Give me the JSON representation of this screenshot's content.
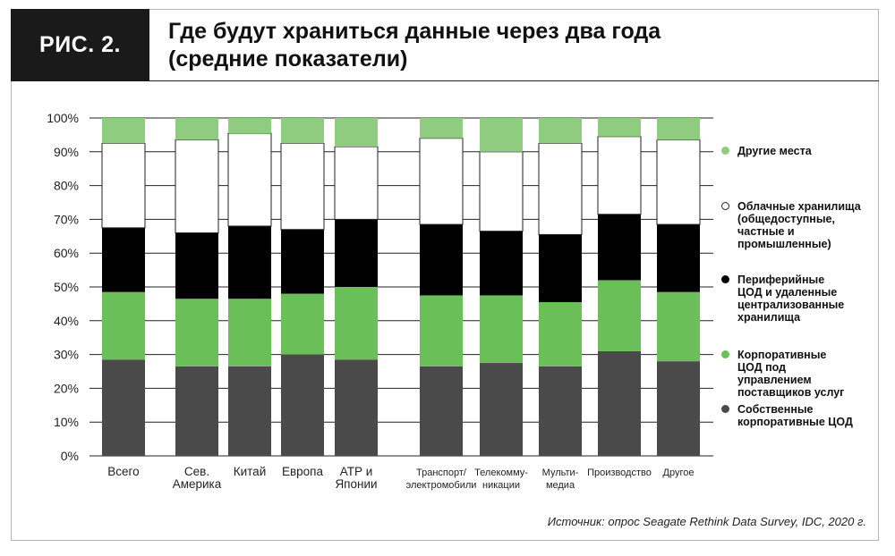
{
  "figure": {
    "label": "РИС. 2.",
    "title_line1": "Где будут храниться данные через два года",
    "title_line2": "(средние показатели)",
    "source": "Источник: опрос Seagate Rethink Data Survey, IDC, 2020 г."
  },
  "colors": {
    "own": "#4a4a4a",
    "provider": "#6bbf59",
    "edge": "#000000",
    "cloud": "#ffffff",
    "other": "#8fcc7f"
  },
  "chart_data": {
    "type": "bar",
    "stacked": true,
    "grid": true,
    "legend_position": "right",
    "ylim": [
      0,
      100
    ],
    "yticks": [
      "0%",
      "10%",
      "20%",
      "30%",
      "40%",
      "50%",
      "60%",
      "70%",
      "80%",
      "90%",
      "100%"
    ],
    "categories": [
      [
        "Всего"
      ],
      [
        "Сев.",
        "Америка"
      ],
      [
        "Китай"
      ],
      [
        "Европа"
      ],
      [
        "АТР и",
        "Японии"
      ],
      [
        "Транспорт/",
        "электромобили"
      ],
      [
        "Телекомму-",
        "никации"
      ],
      [
        "Мульти-",
        "медиа"
      ],
      [
        "Производство"
      ],
      [
        "Другое"
      ]
    ],
    "series": [
      {
        "name": "Собственные корпоративные ЦОД",
        "color": "#4a4a4a",
        "values": [
          28.5,
          26.5,
          26.5,
          30,
          28.5,
          26.5,
          27.5,
          26.5,
          31,
          28
        ]
      },
      {
        "name": "Корпоративные ЦОД под управлением поставщиков услуг",
        "color": "#6bbf59",
        "values": [
          20,
          20,
          20,
          18,
          21.5,
          21,
          20,
          19,
          21,
          20.5
        ]
      },
      {
        "name": "Периферийные ЦОД и удаленные централизованные хранилища",
        "color": "#000000",
        "values": [
          19,
          19.5,
          21.5,
          19,
          20,
          21,
          19,
          20,
          19.5,
          20
        ]
      },
      {
        "name": "Облачные хранилища (общедоступные, частные и промышленные)",
        "color": "#ffffff",
        "values": [
          25,
          27.5,
          27.5,
          25.5,
          21.5,
          25.5,
          23.5,
          27,
          23,
          25
        ]
      },
      {
        "name": "Другие места",
        "color": "#8fcc7f",
        "values": [
          7.5,
          6.5,
          4.5,
          7.5,
          8.5,
          6,
          10,
          7.5,
          5.5,
          6.5
        ]
      }
    ]
  },
  "legend": [
    {
      "lines": [
        "Другие места"
      ],
      "color": "#8fcc7f"
    },
    {
      "lines": [
        "Облачные хранилища",
        "(общедоступные,",
        "частные и",
        "промышленные)"
      ],
      "color": "#ffffff"
    },
    {
      "lines": [
        "Периферийные",
        "ЦОД и удаленные",
        "централизованные",
        "хранилища"
      ],
      "color": "#000000"
    },
    {
      "lines": [
        "Корпоративные",
        "ЦОД под",
        "управлением",
        "поставщиков услуг"
      ],
      "color": "#6bbf59"
    },
    {
      "lines": [
        "Собственные",
        "корпоративные ЦОД"
      ],
      "color": "#4a4a4a"
    }
  ]
}
